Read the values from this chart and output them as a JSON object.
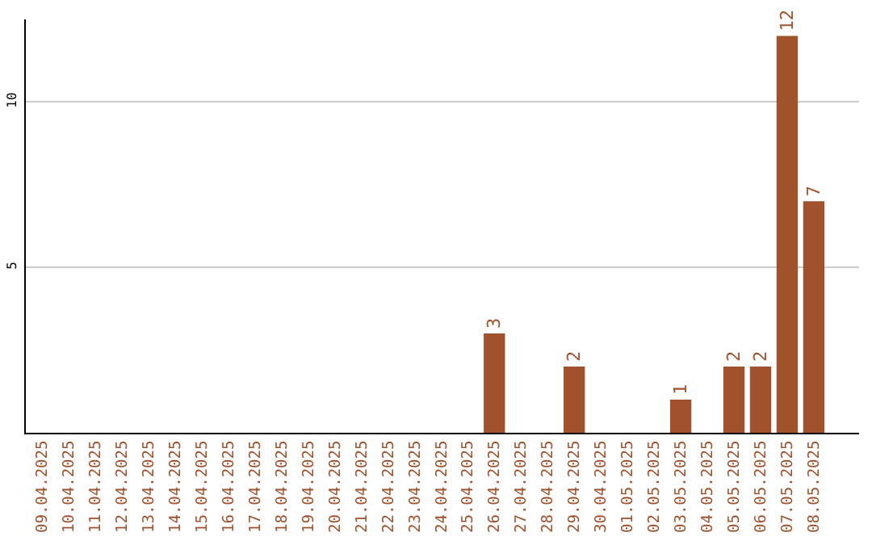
{
  "chart_data": {
    "type": "bar",
    "categories": [
      "09.04.2025",
      "10.04.2025",
      "11.04.2025",
      "12.04.2025",
      "13.04.2025",
      "14.04.2025",
      "15.04.2025",
      "16.04.2025",
      "17.04.2025",
      "18.04.2025",
      "19.04.2025",
      "20.04.2025",
      "21.04.2025",
      "22.04.2025",
      "23.04.2025",
      "24.04.2025",
      "25.04.2025",
      "26.04.2025",
      "27.04.2025",
      "28.04.2025",
      "29.04.2025",
      "30.04.2025",
      "01.05.2025",
      "02.05.2025",
      "03.05.2025",
      "04.05.2025",
      "05.05.2025",
      "06.05.2025",
      "07.05.2025",
      "08.05.2025"
    ],
    "values": [
      0,
      0,
      0,
      0,
      0,
      0,
      0,
      0,
      0,
      0,
      0,
      0,
      0,
      0,
      0,
      0,
      0,
      3,
      0,
      0,
      2,
      0,
      0,
      0,
      1,
      0,
      2,
      2,
      12,
      7
    ],
    "value_labels": [
      null,
      null,
      null,
      null,
      null,
      null,
      null,
      null,
      null,
      null,
      null,
      null,
      null,
      null,
      null,
      null,
      null,
      "3",
      null,
      null,
      "2",
      null,
      null,
      null,
      "1",
      null,
      "2",
      "2",
      "12",
      "7"
    ],
    "color": "#a0522d",
    "ylim": [
      0,
      12.5
    ],
    "yticks": [
      5,
      10
    ],
    "grid": "y",
    "legend": false
  }
}
